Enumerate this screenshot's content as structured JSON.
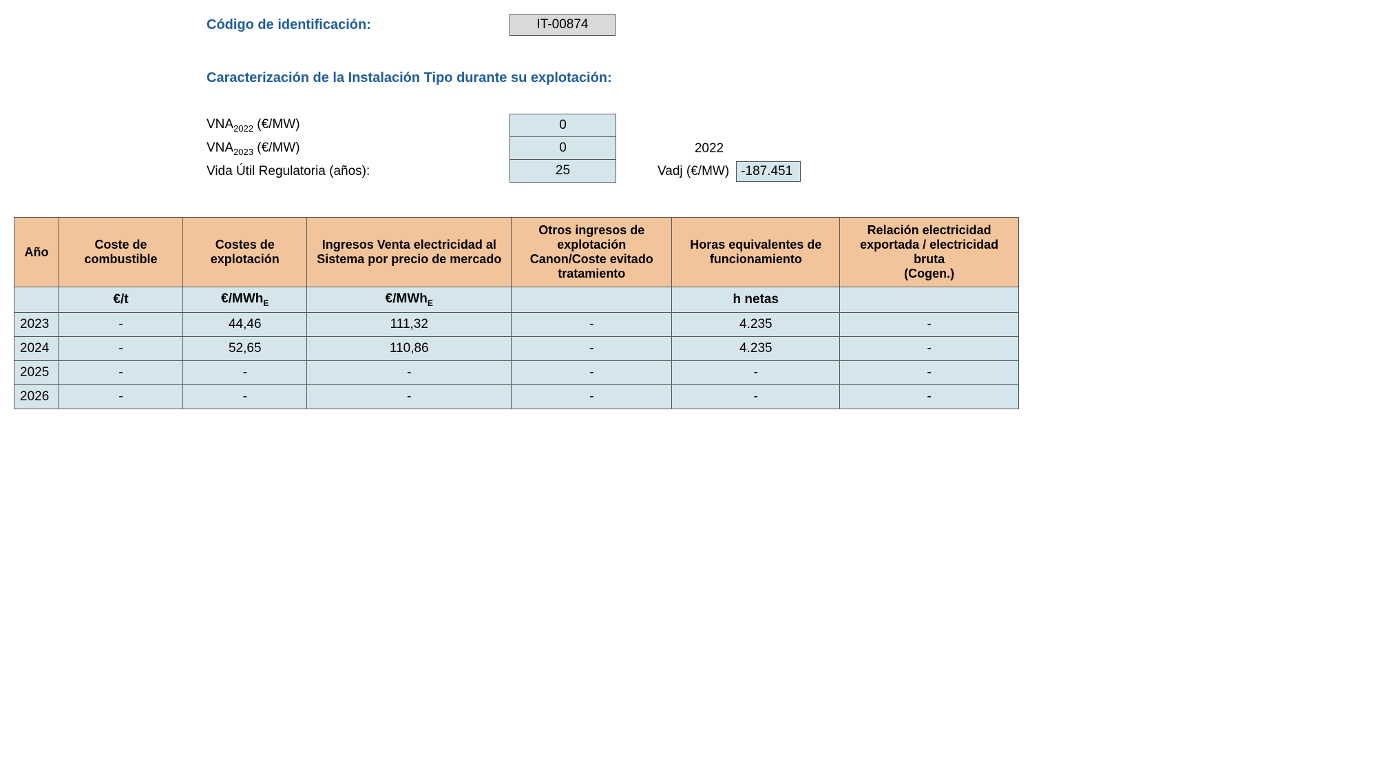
{
  "header": {
    "code_label": "Código de identificación:",
    "code_value": "IT-00874",
    "section_title": "Caracterización de la Instalación Tipo durante su explotación:",
    "params": {
      "vna2022_label_prefix": "VNA",
      "vna2022_sub": "2022",
      "vna_unit": " (€/MW)",
      "vna2022_value": "0",
      "vna2023_sub": "2023",
      "vna2023_value": "0",
      "vida_label": "Vida Útil Regulatoria (años):",
      "vida_value": "25",
      "side_year": "2022",
      "vadj_label": "Vadj (€/MW)",
      "vadj_value": "-187.451"
    }
  },
  "table": {
    "columns": [
      "Año",
      "Coste de combustible",
      "Costes de explotación",
      "Ingresos Venta electricidad al Sistema por precio de mercado",
      "Otros ingresos de explotación Canon/Coste evitado tratamiento",
      "Horas equivalentes de funcionamiento",
      "Relación electricidad exportada / electricidad bruta\n(Cogen.)"
    ],
    "units": [
      "",
      "€/t",
      "€/MWh_E",
      "€/MWh_E",
      "",
      "h netas",
      ""
    ],
    "rows": [
      {
        "year": "2023",
        "c1": "-",
        "c2": "44,46",
        "c3": "111,32",
        "c4": "-",
        "c5": "4.235",
        "c6": "-"
      },
      {
        "year": "2024",
        "c1": "-",
        "c2": "52,65",
        "c3": "110,86",
        "c4": "-",
        "c5": "4.235",
        "c6": "-"
      },
      {
        "year": "2025",
        "c1": "-",
        "c2": "-",
        "c3": "-",
        "c4": "-",
        "c5": "-",
        "c6": "-"
      },
      {
        "year": "2026",
        "c1": "-",
        "c2": "-",
        "c3": "-",
        "c4": "-",
        "c5": "-",
        "c6": "-"
      }
    ],
    "col_widths": [
      "55px",
      "170px",
      "170px",
      "280px",
      "220px",
      "230px",
      "245px"
    ],
    "colors": {
      "header_bg": "#f2c49b",
      "cell_bg": "#d4e6ec",
      "border": "#555555",
      "title_color": "#1f5d9c",
      "code_box_bg": "#d9d9d9"
    }
  }
}
